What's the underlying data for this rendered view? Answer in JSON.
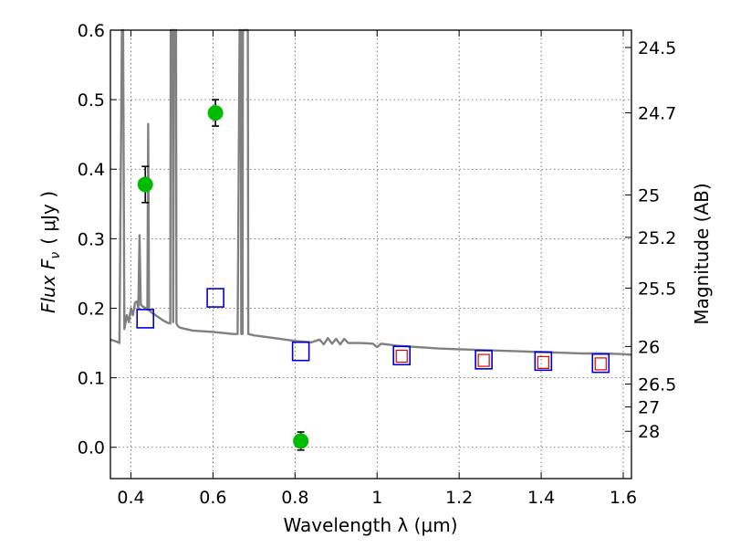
{
  "chart_data": {
    "type": "scatter",
    "xlabel": "Wavelength  λ (μm)",
    "ylabel": "Flux  F",
    "ylabel_sub": "ν",
    "ylabel_unit": "( μJy )",
    "ylabel_right": "Magnitude (AB)",
    "xlim": [
      0.35,
      1.62
    ],
    "ylim": [
      -0.045,
      0.6
    ],
    "xticks": [
      0.4,
      0.6,
      0.8,
      1.0,
      1.2,
      1.4,
      1.6
    ],
    "xtick_labels": [
      "0.4",
      "0.6",
      "0.8",
      "1",
      "1.2",
      "1.4",
      "1.6"
    ],
    "yticks": [
      0.0,
      0.1,
      0.2,
      0.3,
      0.4,
      0.5,
      0.6
    ],
    "ytick_labels": [
      "0.0",
      "0.1",
      "0.2",
      "0.3",
      "0.4",
      "0.5",
      "0.6"
    ],
    "right_ticks": [
      {
        "label": "24.5",
        "flux": 0.575
      },
      {
        "label": "24.7",
        "flux": 0.481
      },
      {
        "label": "25",
        "flux": 0.363
      },
      {
        "label": "25.2",
        "flux": 0.302
      },
      {
        "label": "25.5",
        "flux": 0.229
      },
      {
        "label": "26",
        "flux": 0.145
      },
      {
        "label": "26.5",
        "flux": 0.091
      },
      {
        "label": "27",
        "flux": 0.058
      },
      {
        "label": "28",
        "flux": 0.023
      }
    ],
    "grid": true,
    "series": [
      {
        "name": "observed flux",
        "kind": "points_with_errors",
        "color": "#00bb00",
        "points": [
          {
            "x": 0.435,
            "y": 0.378,
            "err": 0.026
          },
          {
            "x": 0.606,
            "y": 0.481,
            "err": 0.019
          },
          {
            "x": 0.814,
            "y": 0.009,
            "err": 0.013
          }
        ]
      },
      {
        "name": "model photometry",
        "kind": "open_squares",
        "color": "#0000cc",
        "points": [
          {
            "x": 0.435,
            "y": 0.185
          },
          {
            "x": 0.606,
            "y": 0.215
          },
          {
            "x": 0.814,
            "y": 0.138
          },
          {
            "x": 1.06,
            "y": 0.132
          },
          {
            "x": 1.26,
            "y": 0.126
          },
          {
            "x": 1.405,
            "y": 0.124
          },
          {
            "x": 1.545,
            "y": 0.121
          }
        ]
      },
      {
        "name": "comparison photometry",
        "kind": "small_open_squares",
        "color": "#dd0000",
        "points": [
          {
            "x": 1.06,
            "y": 0.131
          },
          {
            "x": 1.26,
            "y": 0.125
          },
          {
            "x": 1.405,
            "y": 0.122
          },
          {
            "x": 1.545,
            "y": 0.12
          }
        ]
      },
      {
        "name": "model spectrum",
        "kind": "line",
        "color": "#808080",
        "points": [
          [
            0.35,
            0.155
          ],
          [
            0.365,
            0.152
          ],
          [
            0.372,
            0.15
          ],
          [
            0.378,
            0.6
          ],
          [
            0.381,
            0.6
          ],
          [
            0.384,
            0.17
          ],
          [
            0.39,
            0.19
          ],
          [
            0.395,
            0.18
          ],
          [
            0.4,
            0.2
          ],
          [
            0.405,
            0.19
          ],
          [
            0.41,
            0.208
          ],
          [
            0.415,
            0.21
          ],
          [
            0.418,
            0.2
          ],
          [
            0.421,
            0.305
          ],
          [
            0.424,
            0.205
          ],
          [
            0.43,
            0.202
          ],
          [
            0.437,
            0.2
          ],
          [
            0.44,
            0.198
          ],
          [
            0.442,
            0.465
          ],
          [
            0.444,
            0.197
          ],
          [
            0.45,
            0.194
          ],
          [
            0.46,
            0.19
          ],
          [
            0.47,
            0.186
          ],
          [
            0.48,
            0.182
          ],
          [
            0.49,
            0.179
          ],
          [
            0.496,
            0.178
          ],
          [
            0.497,
            0.6
          ],
          [
            0.502,
            0.6
          ],
          [
            0.503,
            0.18
          ],
          [
            0.505,
            0.6
          ],
          [
            0.51,
            0.6
          ],
          [
            0.511,
            0.178
          ],
          [
            0.515,
            0.174
          ],
          [
            0.52,
            0.172
          ],
          [
            0.55,
            0.168
          ],
          [
            0.6,
            0.166
          ],
          [
            0.65,
            0.163
          ],
          [
            0.66,
            0.163
          ],
          [
            0.665,
            0.6
          ],
          [
            0.668,
            0.6
          ],
          [
            0.669,
            0.163
          ],
          [
            0.672,
            0.163
          ],
          [
            0.673,
            0.6
          ],
          [
            0.685,
            0.6
          ],
          [
            0.686,
            0.163
          ],
          [
            0.7,
            0.161
          ],
          [
            0.75,
            0.157
          ],
          [
            0.8,
            0.153
          ],
          [
            0.84,
            0.151
          ],
          [
            0.86,
            0.155
          ],
          [
            0.87,
            0.148
          ],
          [
            0.88,
            0.157
          ],
          [
            0.89,
            0.149
          ],
          [
            0.9,
            0.156
          ],
          [
            0.91,
            0.148
          ],
          [
            0.92,
            0.156
          ],
          [
            0.93,
            0.15
          ],
          [
            0.96,
            0.15
          ],
          [
            0.99,
            0.149
          ],
          [
            1.0,
            0.144
          ],
          [
            1.01,
            0.149
          ],
          [
            1.05,
            0.146
          ],
          [
            1.1,
            0.144
          ],
          [
            1.15,
            0.142
          ],
          [
            1.2,
            0.141
          ],
          [
            1.25,
            0.14
          ],
          [
            1.3,
            0.139
          ],
          [
            1.35,
            0.138
          ],
          [
            1.4,
            0.137
          ],
          [
            1.45,
            0.136
          ],
          [
            1.5,
            0.135
          ],
          [
            1.55,
            0.135
          ],
          [
            1.6,
            0.134
          ],
          [
            1.62,
            0.133
          ]
        ]
      }
    ]
  }
}
